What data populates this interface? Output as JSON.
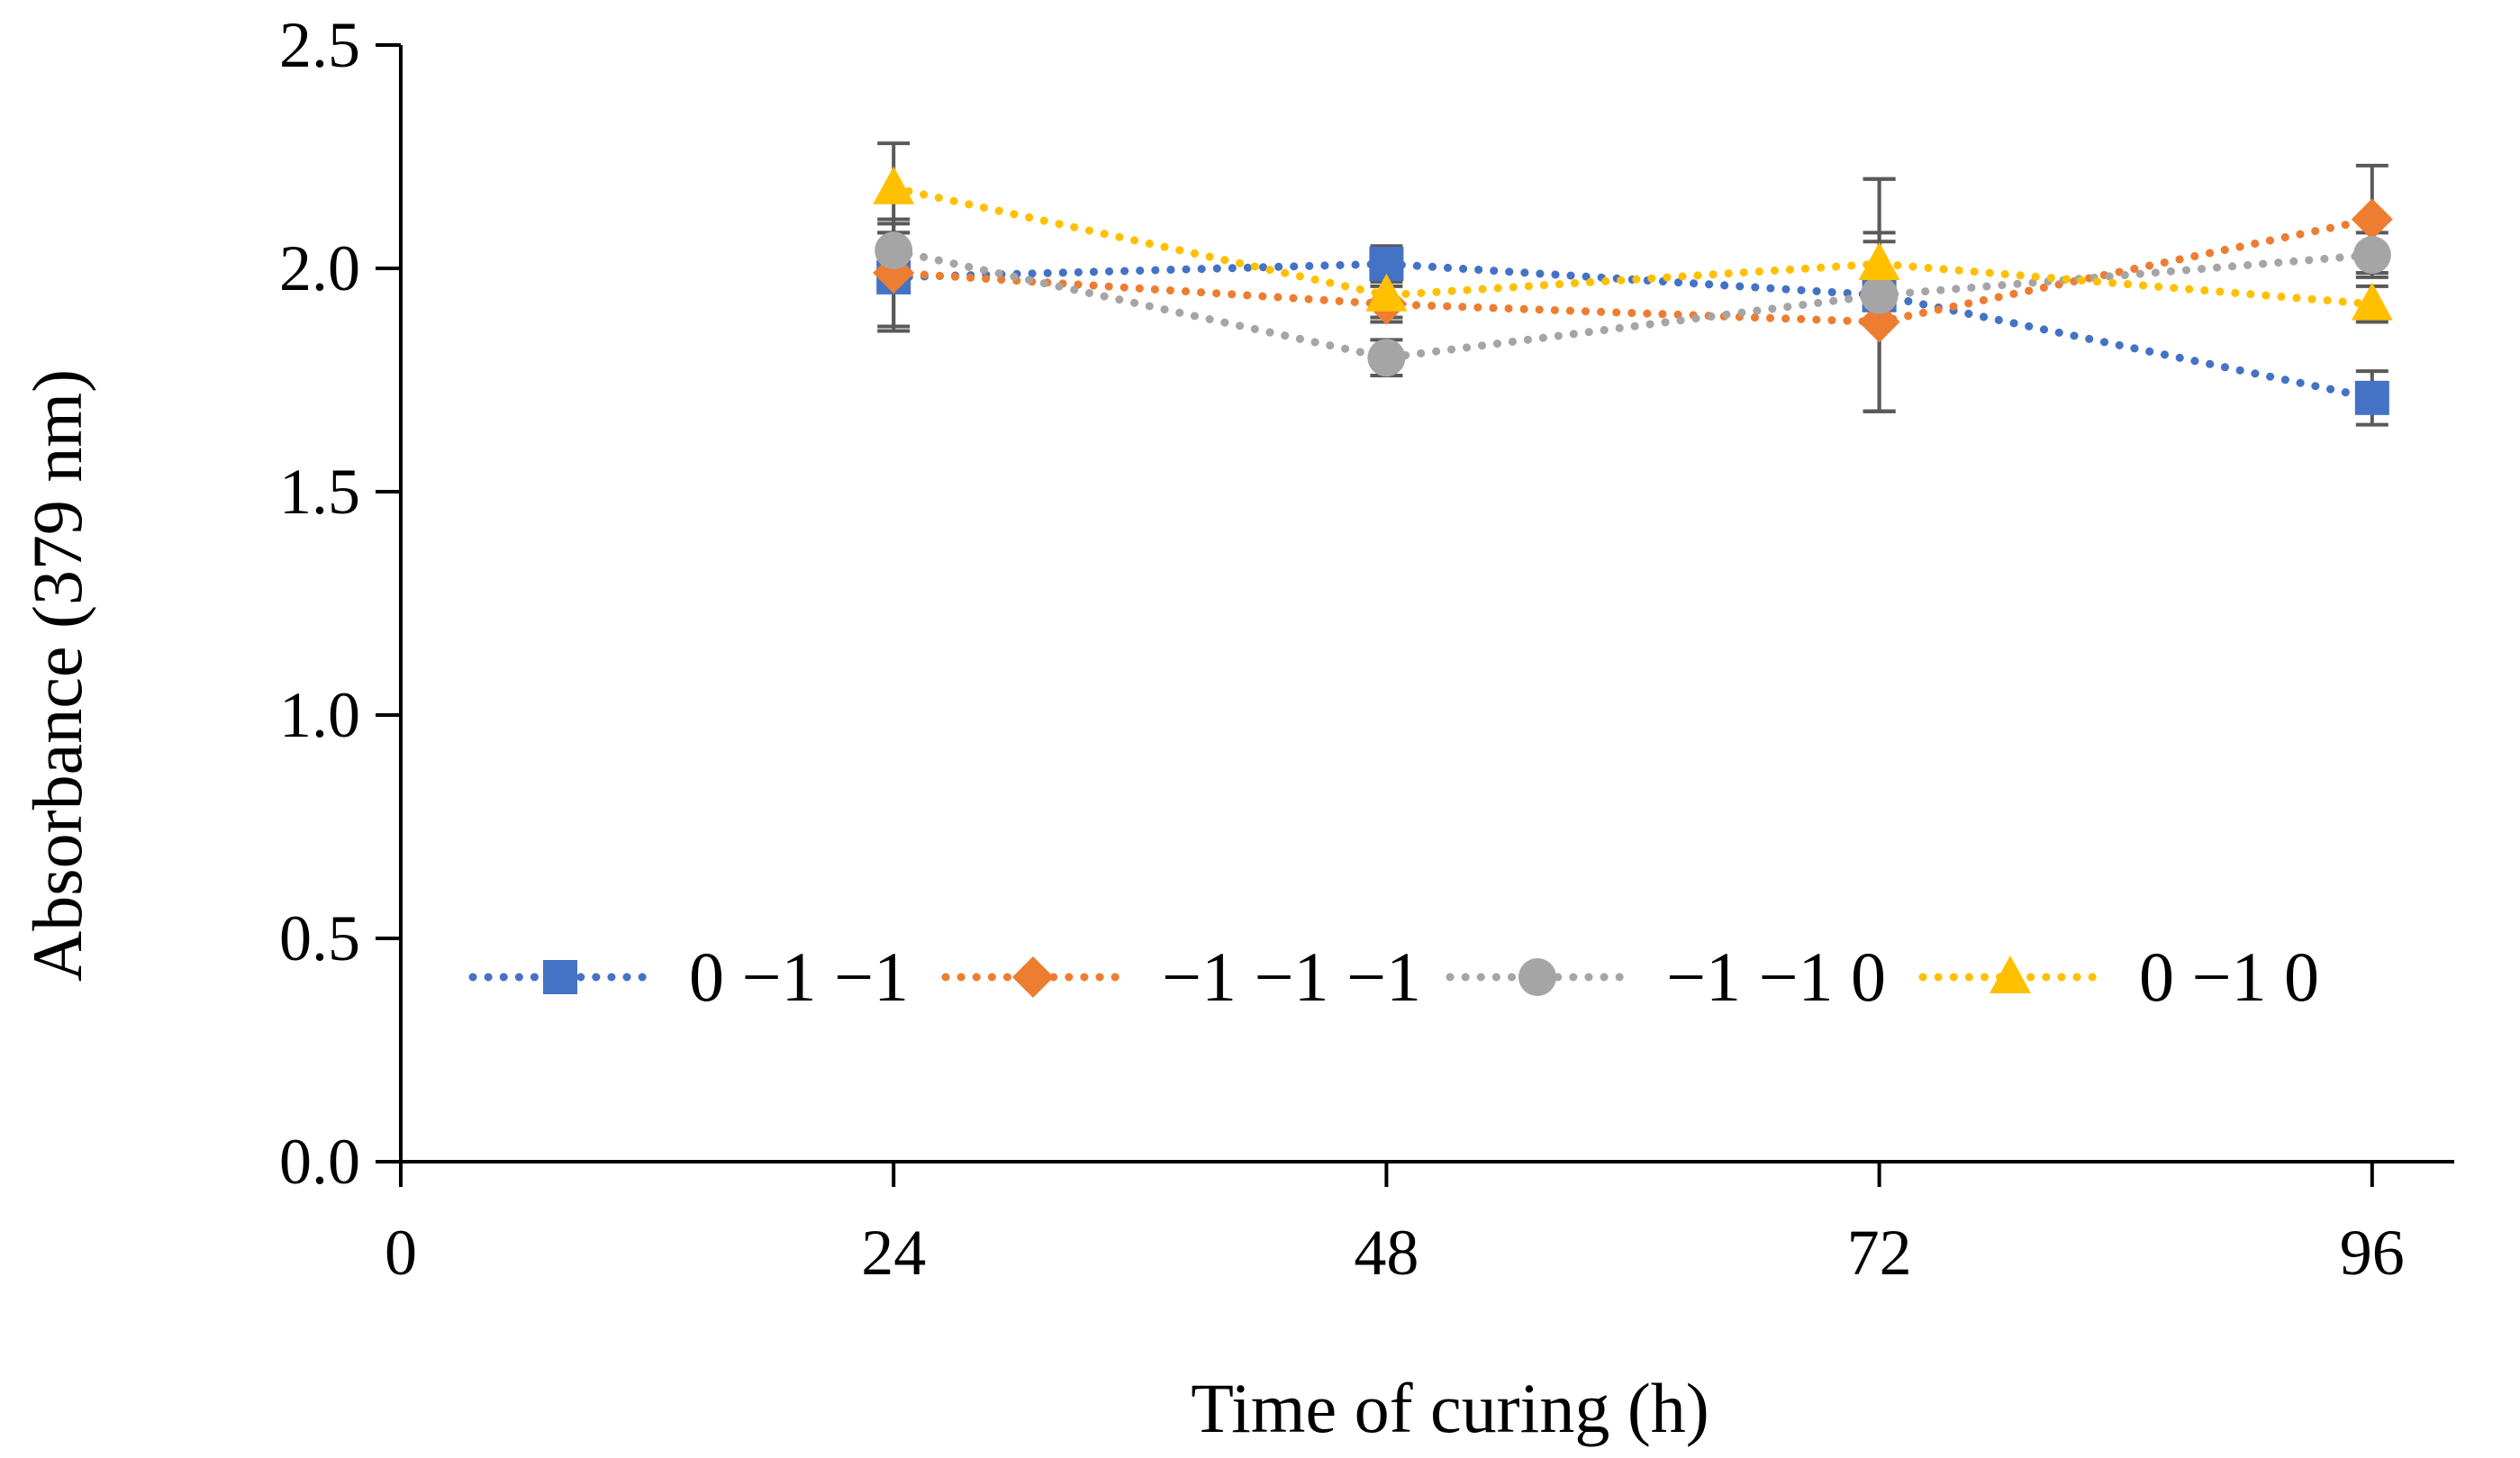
{
  "chart_data": {
    "type": "line",
    "xlabel": "Time of curing (h)",
    "ylabel": "Absorbance (379 nm)",
    "xlim": [
      0,
      100
    ],
    "ylim": [
      0,
      2.5
    ],
    "x_ticks": [
      "0",
      "24",
      "48",
      "72",
      "96"
    ],
    "y_ticks": [
      "0.0",
      "0.5",
      "1.0",
      "1.5",
      "2.0",
      "2.5"
    ],
    "legend_position": "inside-bottom",
    "line_style": "dotted",
    "x": [
      24,
      48,
      72,
      96
    ],
    "series": [
      {
        "name": "0 −1 −1",
        "color": "#4472C4",
        "marker": "square",
        "values": [
          1.98,
          2.01,
          1.94,
          1.71
        ],
        "errors": [
          0.12,
          0.04,
          0.26,
          0.06
        ]
      },
      {
        "name": "−1 −1 −1",
        "color": "#ED7D31",
        "marker": "diamond",
        "values": [
          1.99,
          1.92,
          1.88,
          2.11
        ],
        "errors": [
          0.12,
          0.04,
          0.2,
          0.12
        ]
      },
      {
        "name": "−1 −1 0",
        "color": "#A5A5A5",
        "marker": "circle",
        "values": [
          2.04,
          1.8,
          1.94,
          2.03
        ],
        "errors": [
          0.04,
          0.04,
          0.26,
          0.05
        ]
      },
      {
        "name": "0 −1 0",
        "color": "#FFC000",
        "marker": "triangle",
        "values": [
          2.18,
          1.94,
          2.01,
          1.92
        ],
        "errors": [
          0.1,
          0.05,
          0.05,
          0.04
        ]
      }
    ]
  }
}
